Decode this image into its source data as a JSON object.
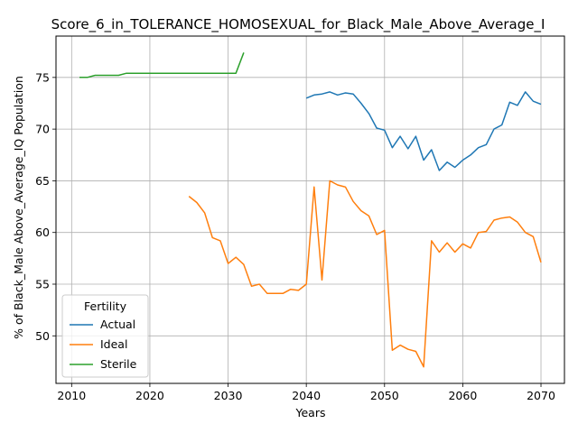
{
  "chart_data": {
    "type": "line",
    "title": "Score_6_in_TOLERANCE_HOMOSEXUAL_for_Black_Male_Above_Average_I",
    "xlabel": "Years",
    "ylabel": "% of Black_Male Above_Average_IQ Population",
    "xlim": [
      2008,
      2073
    ],
    "ylim": [
      45.4,
      79.0
    ],
    "xticks": [
      2010,
      2020,
      2030,
      2040,
      2050,
      2060,
      2070
    ],
    "yticks": [
      50,
      55,
      60,
      65,
      70,
      75
    ],
    "grid": true,
    "legend": {
      "title": "Fertility",
      "placement": "lower-left"
    },
    "series": [
      {
        "name": "Actual",
        "color": "#1f77b4",
        "x": [
          2040,
          2041,
          2042,
          2043,
          2044,
          2045,
          2046,
          2047,
          2048,
          2049,
          2050,
          2051,
          2052,
          2053,
          2054,
          2055,
          2056,
          2057,
          2058,
          2059,
          2060,
          2061,
          2062,
          2063,
          2064,
          2065,
          2066,
          2067,
          2068,
          2069,
          2070
        ],
        "y": [
          73.0,
          73.3,
          73.4,
          73.6,
          73.3,
          73.5,
          73.4,
          72.5,
          71.5,
          70.1,
          69.9,
          68.2,
          69.3,
          68.1,
          69.3,
          67.0,
          68.0,
          66.0,
          66.8,
          66.3,
          67.0,
          67.5,
          68.2,
          68.5,
          70.0,
          70.4,
          72.6,
          72.3,
          73.6,
          72.7,
          72.4
        ]
      },
      {
        "name": "Ideal",
        "color": "#ff7f0e",
        "x": [
          2025,
          2026,
          2027,
          2028,
          2029,
          2030,
          2031,
          2032,
          2033,
          2034,
          2035,
          2036,
          2037,
          2038,
          2039,
          2040,
          2041,
          2042,
          2043,
          2044,
          2045,
          2046,
          2047,
          2048,
          2049,
          2050,
          2051,
          2052,
          2053,
          2054,
          2055,
          2056,
          2057,
          2058,
          2059,
          2060,
          2061,
          2062,
          2063,
          2064,
          2065,
          2066,
          2067,
          2068,
          2069,
          2070
        ],
        "y": [
          63.5,
          62.9,
          61.9,
          59.5,
          59.2,
          57.0,
          57.6,
          56.9,
          54.8,
          55.0,
          54.1,
          54.1,
          54.1,
          54.5,
          54.4,
          55.0,
          64.4,
          55.4,
          65.0,
          64.6,
          64.4,
          63.0,
          62.1,
          61.6,
          59.8,
          60.2,
          48.6,
          49.1,
          48.7,
          48.5,
          47.0,
          59.2,
          58.1,
          59.0,
          58.1,
          58.9,
          58.5,
          60.0,
          60.1,
          61.2,
          61.4,
          61.5,
          61.0,
          60.0,
          59.6,
          57.1
        ]
      },
      {
        "name": "Sterile",
        "color": "#2ca02c",
        "x": [
          2011,
          2012,
          2013,
          2014,
          2015,
          2016,
          2017,
          2018,
          2019,
          2020,
          2021,
          2022,
          2023,
          2024,
          2025,
          2026,
          2027,
          2028,
          2029,
          2030,
          2031,
          2032
        ],
        "y": [
          75.0,
          75.0,
          75.2,
          75.2,
          75.2,
          75.2,
          75.4,
          75.4,
          75.4,
          75.4,
          75.4,
          75.4,
          75.4,
          75.4,
          75.4,
          75.4,
          75.4,
          75.4,
          75.4,
          75.4,
          75.4,
          77.4
        ]
      }
    ]
  }
}
